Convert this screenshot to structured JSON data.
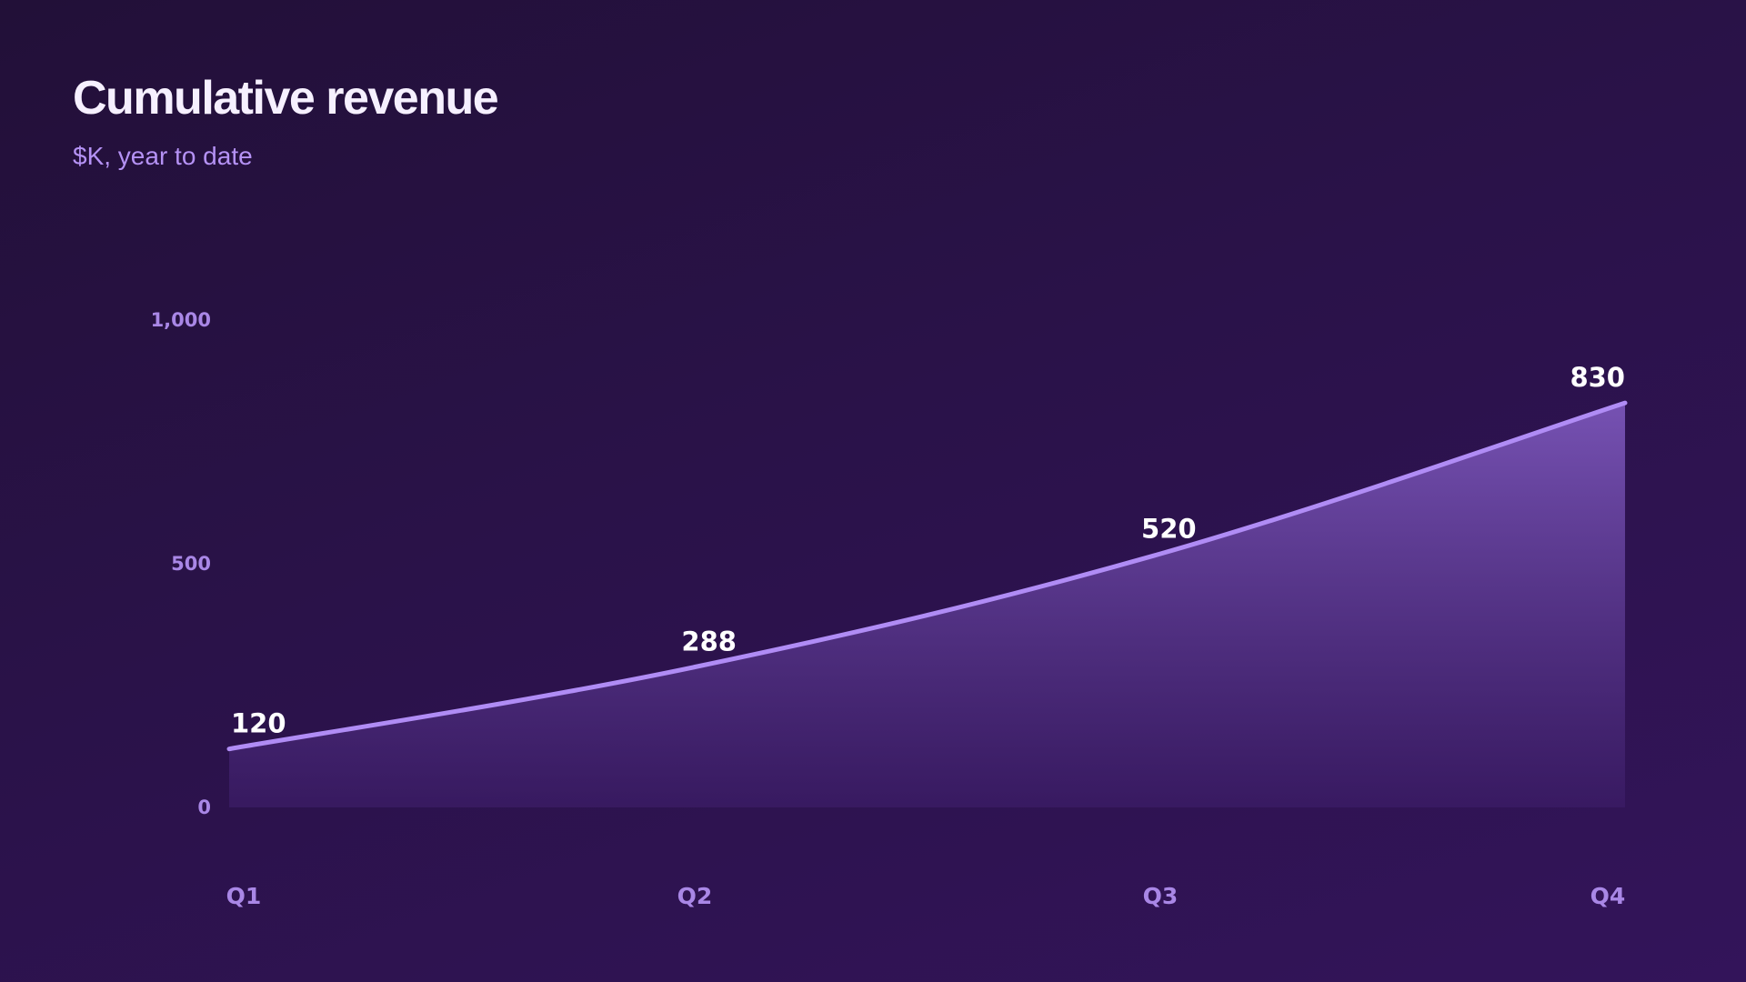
{
  "chart_data": {
    "type": "area",
    "title": "Cumulative revenue",
    "subtitle": "$K, year to date",
    "categories": [
      "Q1",
      "Q2",
      "Q3",
      "Q4"
    ],
    "values": [
      120,
      288,
      520,
      830
    ],
    "data_labels": [
      "120",
      "288",
      "520",
      "830"
    ],
    "y_ticks": [
      {
        "value": 0,
        "label": "0"
      },
      {
        "value": 500,
        "label": "500"
      },
      {
        "value": 1000,
        "label": "1,000"
      }
    ],
    "ylim": [
      0,
      1000
    ],
    "grid": false,
    "legend": "none",
    "smooth": true
  },
  "colors": {
    "background_top": "#221038",
    "background_bottom": "#33145a",
    "line": "#b08cf5",
    "area_top": "#7a55b8",
    "area_bottom": "#3b1c66",
    "title": "#f6f0ff",
    "subtitle": "#b592f5",
    "tick": "#a987e6",
    "data_label": "#ffffff"
  }
}
